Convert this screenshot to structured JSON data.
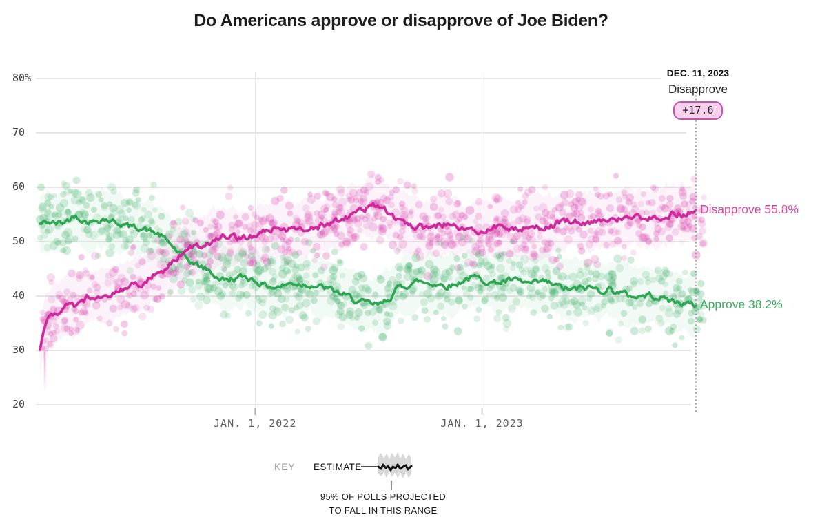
{
  "chart_data": {
    "type": "scatter",
    "title": "Do Americans approve or disapprove of Joe Biden?",
    "x_axis": {
      "range": [
        "2021-01-20",
        "2023-12-11"
      ],
      "ticks": [
        {
          "label": "JAN. 1, 2022",
          "date": "2022-01-01"
        },
        {
          "label": "JAN. 1, 2023",
          "date": "2023-01-01"
        }
      ]
    },
    "y_axis": {
      "range": [
        20,
        80
      ],
      "ticks": [
        {
          "label": "80%",
          "value": 80
        },
        {
          "label": "70",
          "value": 70
        },
        {
          "label": "60",
          "value": 60
        },
        {
          "label": "50",
          "value": 50
        },
        {
          "label": "40",
          "value": 40
        },
        {
          "label": "30",
          "value": 30
        },
        {
          "label": "20",
          "value": 20
        }
      ]
    },
    "annotation": {
      "date_label": "DEC. 11, 2023",
      "series_label": "Disapprove",
      "margin_badge": "+17.6",
      "date": "2023-12-11",
      "badge_bg": "#f7d0ec",
      "badge_border": "#c952ae"
    },
    "grid_color": "#cccccc",
    "vgrid_color": "#e2e2e2",
    "dotted_line_color": "#8d8d8d",
    "series": [
      {
        "name": "Approve",
        "final_label": "Approve 38.2%",
        "final_value": 38.2,
        "line_color": "#2fa653",
        "dot_color": "#4db474",
        "label_color": "#3dab63",
        "points": [
          [
            "2021-01-20",
            53.2
          ],
          [
            "2021-02-01",
            53.6
          ],
          [
            "2021-02-15",
            53.3
          ],
          [
            "2021-03-01",
            53.6
          ],
          [
            "2021-03-18",
            54.9
          ],
          [
            "2021-04-01",
            53.9
          ],
          [
            "2021-04-15",
            53.6
          ],
          [
            "2021-05-01",
            54.3
          ],
          [
            "2021-05-15",
            53.8
          ],
          [
            "2021-06-01",
            53.2
          ],
          [
            "2021-06-15",
            52.7
          ],
          [
            "2021-07-01",
            52.6
          ],
          [
            "2021-07-15",
            52.0
          ],
          [
            "2021-08-01",
            51.2
          ],
          [
            "2021-08-15",
            49.9
          ],
          [
            "2021-09-01",
            47.8
          ],
          [
            "2021-09-15",
            46.6
          ],
          [
            "2021-10-01",
            45.6
          ],
          [
            "2021-10-15",
            44.9
          ],
          [
            "2021-11-01",
            43.4
          ],
          [
            "2021-11-15",
            42.9
          ],
          [
            "2021-12-01",
            43.2
          ],
          [
            "2021-12-15",
            43.6
          ],
          [
            "2022-01-01",
            42.9
          ],
          [
            "2022-01-15",
            42.0
          ],
          [
            "2022-02-01",
            41.6
          ],
          [
            "2022-02-15",
            41.9
          ],
          [
            "2022-03-01",
            42.4
          ],
          [
            "2022-03-15",
            42.2
          ],
          [
            "2022-04-01",
            42.1
          ],
          [
            "2022-04-15",
            41.7
          ],
          [
            "2022-05-01",
            41.2
          ],
          [
            "2022-05-15",
            40.6
          ],
          [
            "2022-06-01",
            39.8
          ],
          [
            "2022-06-15",
            39.0
          ],
          [
            "2022-07-01",
            38.6
          ],
          [
            "2022-07-20",
            38.3
          ],
          [
            "2022-08-05",
            39.6
          ],
          [
            "2022-08-20",
            41.6
          ],
          [
            "2022-09-05",
            42.1
          ],
          [
            "2022-09-20",
            42.7
          ],
          [
            "2022-10-05",
            42.4
          ],
          [
            "2022-10-20",
            42.2
          ],
          [
            "2022-11-05",
            41.9
          ],
          [
            "2022-11-20",
            42.1
          ],
          [
            "2022-12-05",
            43.2
          ],
          [
            "2022-12-20",
            43.4
          ],
          [
            "2023-01-05",
            42.9
          ],
          [
            "2023-01-20",
            42.4
          ],
          [
            "2023-02-05",
            42.7
          ],
          [
            "2023-02-20",
            42.9
          ],
          [
            "2023-03-10",
            42.4
          ],
          [
            "2023-03-25",
            42.2
          ],
          [
            "2023-04-10",
            42.6
          ],
          [
            "2023-04-25",
            42.1
          ],
          [
            "2023-05-10",
            41.5
          ],
          [
            "2023-05-25",
            41.1
          ],
          [
            "2023-06-10",
            41.4
          ],
          [
            "2023-06-25",
            41.6
          ],
          [
            "2023-07-10",
            41.0
          ],
          [
            "2023-07-25",
            41.3
          ],
          [
            "2023-08-10",
            40.7
          ],
          [
            "2023-08-25",
            40.1
          ],
          [
            "2023-09-10",
            39.9
          ],
          [
            "2023-09-25",
            40.2
          ],
          [
            "2023-10-10",
            39.9
          ],
          [
            "2023-10-25",
            39.4
          ],
          [
            "2023-11-10",
            38.9
          ],
          [
            "2023-11-25",
            38.6
          ],
          [
            "2023-12-11",
            38.2
          ]
        ]
      },
      {
        "name": "Disapprove",
        "final_label": "Disapprove 55.8%",
        "final_value": 55.8,
        "line_color": "#cf2a9c",
        "dot_color": "#d94ab0",
        "label_color": "#d2449c",
        "points": [
          [
            "2021-01-20",
            30.0
          ],
          [
            "2021-01-24",
            33.0
          ],
          [
            "2021-02-01",
            35.8
          ],
          [
            "2021-02-10",
            36.8
          ],
          [
            "2021-02-20",
            37.3
          ],
          [
            "2021-03-05",
            38.6
          ],
          [
            "2021-03-20",
            38.1
          ],
          [
            "2021-04-05",
            39.6
          ],
          [
            "2021-04-20",
            40.2
          ],
          [
            "2021-05-05",
            40.0
          ],
          [
            "2021-05-20",
            40.6
          ],
          [
            "2021-06-05",
            41.4
          ],
          [
            "2021-06-20",
            42.0
          ],
          [
            "2021-07-05",
            42.4
          ],
          [
            "2021-07-20",
            43.6
          ],
          [
            "2021-08-05",
            44.6
          ],
          [
            "2021-08-20",
            46.1
          ],
          [
            "2021-09-05",
            47.9
          ],
          [
            "2021-09-20",
            48.9
          ],
          [
            "2021-10-05",
            49.4
          ],
          [
            "2021-10-20",
            49.9
          ],
          [
            "2021-11-05",
            50.9
          ],
          [
            "2021-11-20",
            51.2
          ],
          [
            "2021-12-05",
            50.7
          ],
          [
            "2021-12-20",
            50.6
          ],
          [
            "2022-01-05",
            51.4
          ],
          [
            "2022-01-20",
            52.1
          ],
          [
            "2022-02-05",
            52.2
          ],
          [
            "2022-02-20",
            51.9
          ],
          [
            "2022-03-10",
            52.6
          ],
          [
            "2022-04-01",
            52.4
          ],
          [
            "2022-04-20",
            52.9
          ],
          [
            "2022-05-10",
            53.6
          ],
          [
            "2022-06-01",
            54.6
          ],
          [
            "2022-06-20",
            55.9
          ],
          [
            "2022-07-10",
            56.5
          ],
          [
            "2022-07-22",
            56.7
          ],
          [
            "2022-08-05",
            55.4
          ],
          [
            "2022-08-20",
            54.0
          ],
          [
            "2022-09-05",
            53.2
          ],
          [
            "2022-09-20",
            52.7
          ],
          [
            "2022-10-05",
            52.4
          ],
          [
            "2022-10-20",
            52.9
          ],
          [
            "2022-11-05",
            53.2
          ],
          [
            "2022-11-20",
            52.7
          ],
          [
            "2022-12-05",
            52.1
          ],
          [
            "2022-12-20",
            51.9
          ],
          [
            "2023-01-05",
            52.2
          ],
          [
            "2023-01-20",
            52.7
          ],
          [
            "2023-02-05",
            52.4
          ],
          [
            "2023-02-20",
            52.2
          ],
          [
            "2023-03-10",
            52.7
          ],
          [
            "2023-03-25",
            53.0
          ],
          [
            "2023-04-10",
            52.6
          ],
          [
            "2023-04-25",
            53.1
          ],
          [
            "2023-05-10",
            53.6
          ],
          [
            "2023-05-25",
            53.9
          ],
          [
            "2023-06-10",
            53.7
          ],
          [
            "2023-06-25",
            53.6
          ],
          [
            "2023-07-10",
            54.1
          ],
          [
            "2023-07-25",
            53.9
          ],
          [
            "2023-08-10",
            54.2
          ],
          [
            "2023-08-25",
            54.7
          ],
          [
            "2023-09-10",
            54.4
          ],
          [
            "2023-09-25",
            54.1
          ],
          [
            "2023-10-10",
            54.4
          ],
          [
            "2023-10-25",
            54.9
          ],
          [
            "2023-11-10",
            55.2
          ],
          [
            "2023-11-25",
            55.1
          ],
          [
            "2023-12-11",
            55.8
          ]
        ]
      }
    ],
    "key": {
      "key_label": "KEY",
      "estimate_label": "ESTIMATE",
      "band_caption": [
        "95% OF POLLS PROJECTED",
        "TO FALL IN THIS RANGE"
      ]
    }
  }
}
